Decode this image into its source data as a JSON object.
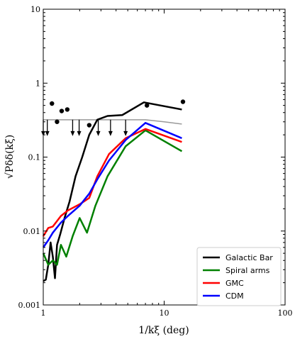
{
  "chart_data": {
    "type": "line",
    "xscale": "log",
    "yscale": "log",
    "xlim": [
      1,
      100
    ],
    "ylim": [
      0.001,
      10
    ],
    "xticks": [
      {
        "value": 1,
        "label": "1"
      },
      {
        "value": 10,
        "label": "10"
      },
      {
        "value": 100,
        "label": "100"
      }
    ],
    "yticks": [
      {
        "value": 0.001,
        "label": "0.001"
      },
      {
        "value": 0.01,
        "label": "0.01"
      },
      {
        "value": 0.1,
        "label": "0.1"
      },
      {
        "value": 1,
        "label": "1"
      },
      {
        "value": 10,
        "label": "10"
      }
    ],
    "xlabel": "1/kξ (deg)",
    "ylabel": "√Pδδ(kξ)",
    "legend_position": "bottom-right",
    "grid": false,
    "series": [
      {
        "name": "Galactic Bar",
        "color": "#000000",
        "x": [
          1.0,
          1.05,
          1.1,
          1.15,
          1.2,
          1.25,
          1.3,
          1.38,
          1.5,
          1.65,
          1.85,
          2.1,
          2.4,
          2.8,
          3.4,
          4.5,
          6.8,
          14.0
        ],
        "y": [
          0.0021,
          0.0022,
          0.0035,
          0.007,
          0.0045,
          0.0023,
          0.0065,
          0.009,
          0.015,
          0.025,
          0.055,
          0.1,
          0.2,
          0.32,
          0.36,
          0.37,
          0.55,
          0.44
        ]
      },
      {
        "name": "Spiral arms",
        "color": "#008000",
        "x": [
          1.0,
          1.1,
          1.2,
          1.3,
          1.4,
          1.55,
          1.75,
          2.0,
          2.3,
          2.7,
          3.4,
          4.8,
          7.0,
          14.0
        ],
        "y": [
          0.005,
          0.0035,
          0.004,
          0.0035,
          0.0065,
          0.0045,
          0.0085,
          0.015,
          0.0095,
          0.022,
          0.055,
          0.14,
          0.23,
          0.12
        ]
      },
      {
        "name": "GMC",
        "color": "#ff0000",
        "x": [
          1.0,
          1.1,
          1.2,
          1.4,
          1.6,
          2.0,
          2.4,
          2.8,
          3.5,
          4.8,
          7.0,
          14.0
        ],
        "y": [
          0.0085,
          0.011,
          0.0115,
          0.016,
          0.019,
          0.023,
          0.028,
          0.055,
          0.11,
          0.18,
          0.24,
          0.16
        ]
      },
      {
        "name": "CDM",
        "color": "#0000ff",
        "x": [
          1.0,
          1.1,
          1.2,
          1.4,
          1.6,
          2.0,
          2.4,
          2.8,
          3.5,
          4.8,
          7.0,
          14.0
        ],
        "y": [
          0.006,
          0.0075,
          0.0095,
          0.013,
          0.016,
          0.022,
          0.032,
          0.05,
          0.09,
          0.17,
          0.29,
          0.18
        ]
      }
    ],
    "upper_limit_line": {
      "color": "#999999",
      "x": [
        1.0,
        1.5,
        2.0,
        3.0,
        5.0,
        7.0,
        10.0,
        14.0
      ],
      "y": [
        0.32,
        0.32,
        0.32,
        0.32,
        0.32,
        0.32,
        0.3,
        0.28
      ]
    },
    "points": {
      "color": "#000000",
      "x": [
        1.18,
        1.3,
        1.42,
        1.58,
        2.4,
        7.2,
        14.3
      ],
      "y": [
        0.53,
        0.3,
        0.42,
        0.44,
        0.27,
        0.5,
        0.56
      ]
    },
    "upper_limits": {
      "color": "#000000",
      "x": [
        1.0,
        1.08,
        1.75,
        1.98,
        2.85,
        3.6,
        4.8
      ],
      "y": [
        0.32,
        0.32,
        0.32,
        0.32,
        0.32,
        0.32,
        0.32
      ]
    }
  }
}
